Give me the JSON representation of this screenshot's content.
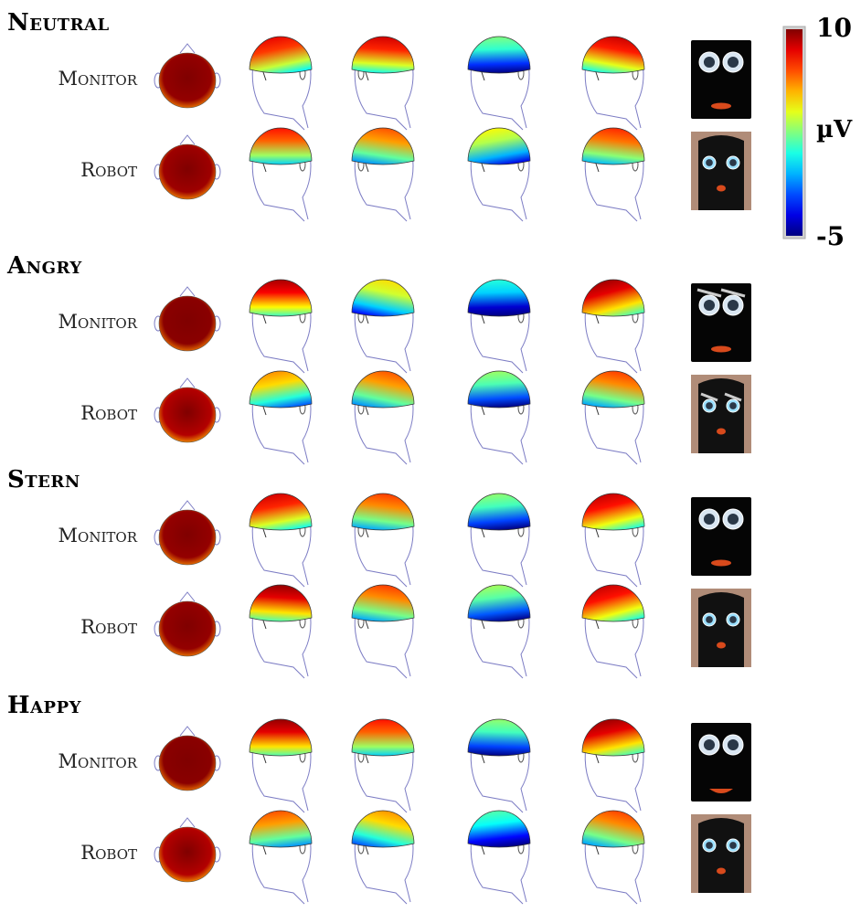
{
  "colorbar": {
    "max_label": "10",
    "unit_label": "µV",
    "min_label": "-5"
  },
  "sections": [
    {
      "title": "Neutral",
      "rows": [
        {
          "label": "Monitor",
          "stim": "monitor",
          "maps": [
            {
              "bias": 0.98
            },
            {
              "bias": 0.82,
              "tilt": -0.35
            },
            {
              "bias": 0.84,
              "tilt": 0.1
            },
            {
              "bias": 0.42,
              "tilt": -0.05
            },
            {
              "bias": 0.85,
              "tilt": 0.3
            }
          ]
        },
        {
          "label": "Robot",
          "stim": "robot",
          "maps": [
            {
              "bias": 0.97
            },
            {
              "bias": 0.78,
              "tilt": 0.0
            },
            {
              "bias": 0.72,
              "tilt": 0.25
            },
            {
              "bias": 0.55,
              "tilt": -0.3
            },
            {
              "bias": 0.76,
              "tilt": 0.2
            }
          ]
        }
      ]
    },
    {
      "title": "Angry",
      "rows": [
        {
          "label": "Monitor",
          "stim": "monitor-angry",
          "maps": [
            {
              "bias": 0.99
            },
            {
              "bias": 0.88,
              "tilt": 0.0
            },
            {
              "bias": 0.58,
              "tilt": 0.35
            },
            {
              "bias": 0.33,
              "tilt": -0.05
            },
            {
              "bias": 0.9,
              "tilt": -0.45
            }
          ]
        },
        {
          "label": "Robot",
          "stim": "robot-angry",
          "maps": [
            {
              "bias": 0.95
            },
            {
              "bias": 0.66,
              "tilt": -0.3
            },
            {
              "bias": 0.72,
              "tilt": 0.35
            },
            {
              "bias": 0.45,
              "tilt": -0.1
            },
            {
              "bias": 0.74,
              "tilt": 0.3
            }
          ]
        }
      ]
    },
    {
      "title": "Stern",
      "rows": [
        {
          "label": "Monitor",
          "stim": "monitor",
          "maps": [
            {
              "bias": 0.98
            },
            {
              "bias": 0.84,
              "tilt": -0.3
            },
            {
              "bias": 0.74,
              "tilt": 0.2
            },
            {
              "bias": 0.44,
              "tilt": -0.15
            },
            {
              "bias": 0.86,
              "tilt": -0.4
            }
          ]
        },
        {
          "label": "Robot",
          "stim": "robot",
          "maps": [
            {
              "bias": 0.98
            },
            {
              "bias": 0.9,
              "tilt": 0.1
            },
            {
              "bias": 0.74,
              "tilt": 0.25
            },
            {
              "bias": 0.46,
              "tilt": -0.2
            },
            {
              "bias": 0.86,
              "tilt": -0.45
            }
          ]
        }
      ]
    },
    {
      "title": "Happy",
      "rows": [
        {
          "label": "Monitor",
          "stim": "monitor-happy",
          "maps": [
            {
              "bias": 0.99
            },
            {
              "bias": 0.9,
              "tilt": 0.0
            },
            {
              "bias": 0.78,
              "tilt": 0.0
            },
            {
              "bias": 0.44,
              "tilt": 0.05
            },
            {
              "bias": 0.9,
              "tilt": -0.35
            }
          ]
        },
        {
          "label": "Robot",
          "stim": "robot",
          "maps": [
            {
              "bias": 0.95
            },
            {
              "bias": 0.72,
              "tilt": -0.2
            },
            {
              "bias": 0.66,
              "tilt": 0.4
            },
            {
              "bias": 0.38,
              "tilt": -0.2
            },
            {
              "bias": 0.74,
              "tilt": 0.4
            }
          ]
        }
      ]
    }
  ]
}
